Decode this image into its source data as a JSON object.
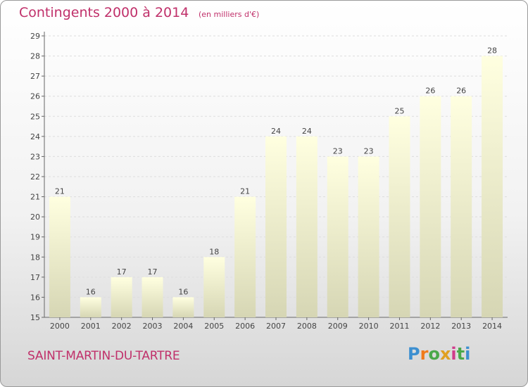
{
  "header": {
    "title": "Contingents 2000 à 2014",
    "unit": "(en milliers d'€)"
  },
  "footer": {
    "place": "SAINT-MARTIN-DU-TARTRE",
    "brand": [
      "P",
      "r",
      "o",
      "x",
      "i",
      "t",
      "i"
    ],
    "brand_colors": [
      "#3c8fd0",
      "#f07a1a",
      "#4aa84a",
      "#e0a020",
      "#d03a8a",
      "#4aa84a",
      "#3c8fd0"
    ]
  },
  "colors": {
    "title": "#c0306a",
    "bar_light": "#ffffe0",
    "bar_dark": "#d6d6b4"
  },
  "chart_data": {
    "type": "bar",
    "categories": [
      "2000",
      "2001",
      "2002",
      "2003",
      "2004",
      "2005",
      "2006",
      "2007",
      "2008",
      "2009",
      "2010",
      "2011",
      "2012",
      "2013",
      "2014"
    ],
    "values": [
      21,
      16,
      17,
      17,
      16,
      18,
      21,
      24,
      24,
      23,
      23,
      25,
      26,
      26,
      28
    ],
    "title": "Contingents 2000 à 2014",
    "xlabel": "",
    "ylabel": "",
    "ylim": [
      15,
      29
    ],
    "yticks": [
      "15",
      "16",
      "17",
      "18",
      "19",
      "20",
      "21",
      "22",
      "23",
      "24",
      "25",
      "26",
      "27",
      "28",
      "29"
    ],
    "grid": true,
    "legend": "none"
  }
}
